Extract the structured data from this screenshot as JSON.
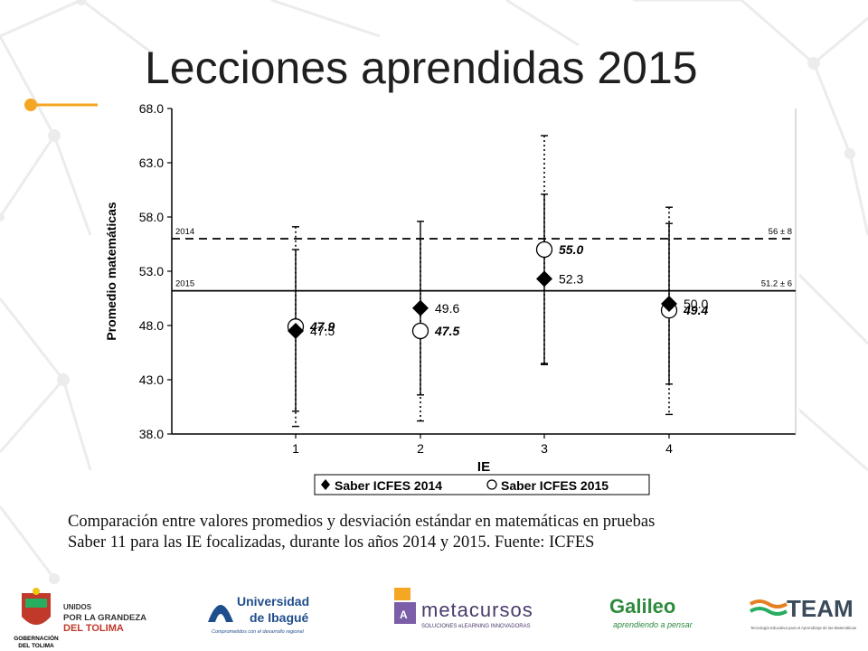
{
  "slide": {
    "title": "Lecciones aprendidas 2015",
    "caption_line1": "Comparación entre valores promedios y desviación estándar en matemáticas en pruebas",
    "caption_line2": "Saber 11 para las IE focalizadas, durante los años 2014 y 2015. Fuente: ICFES"
  },
  "colors": {
    "accent": "#f5a623",
    "network_lines": "#ececec",
    "marks": "#000000"
  },
  "chart_data": {
    "type": "scatter",
    "ylabel": "Promedio matemáticas",
    "xlabel": "IE",
    "ylim": [
      38.0,
      68.0
    ],
    "yticks": [
      "38.0",
      "43.0",
      "48.0",
      "53.0",
      "58.0",
      "63.0",
      "68.0"
    ],
    "categories": [
      "1",
      "2",
      "3",
      "4"
    ],
    "series": [
      {
        "name": "Saber ICFES 2014",
        "marker": "diamond",
        "values": [
          47.5,
          49.6,
          52.3,
          50.0
        ],
        "labels": [
          "47.5",
          "49.6",
          "52.3",
          "50.0"
        ],
        "err_low": [
          40.1,
          41.6,
          44.4,
          42.6
        ],
        "err_high": [
          55.0,
          57.6,
          60.1,
          57.4
        ]
      },
      {
        "name": "Saber ICFES 2015",
        "marker": "circle",
        "values": [
          47.9,
          47.5,
          55.0,
          49.4
        ],
        "labels": [
          "47.9",
          "47.5",
          "55.0",
          "49.4"
        ],
        "err_low": [
          38.7,
          39.2,
          44.5,
          39.8
        ],
        "err_high": [
          57.1,
          56.0,
          65.5,
          58.9
        ]
      }
    ],
    "reference_lines": [
      {
        "year": "2014",
        "value": 56.0,
        "label": "56 ± 8",
        "style": "dashed"
      },
      {
        "year": "2015",
        "value": 51.2,
        "label": "51.2 ± 6",
        "style": "solid"
      }
    ],
    "legend": {
      "placement": "bottom-center"
    },
    "grid": false
  },
  "logos": {
    "gobernacion": {
      "name": "GOBERNACIÓN",
      "sub": "DEL TOLIMA"
    },
    "unidos": {
      "line1": "UNIDOS",
      "line2": "POR LA GRANDEZA",
      "line3": "DEL TOLIMA"
    },
    "universidad": {
      "line1": "Universidad",
      "line2": "de Ibagué",
      "tagline": "Comprometidos con el desarrollo regional"
    },
    "metacursos": {
      "name": "metacursos",
      "tagline": "SOLUCIONES eLEARNING INNOVADORAS"
    },
    "galileo": {
      "name": "Galileo",
      "tagline": "aprendiendo a pensar"
    },
    "team": {
      "name": "TEAM",
      "tagline": "Tecnología Educativa para el Aprendizaje de las Matemáticas"
    }
  }
}
